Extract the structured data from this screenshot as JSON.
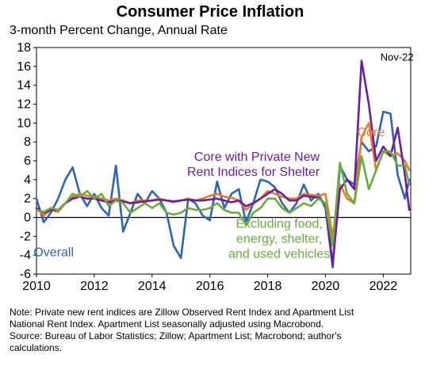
{
  "header": {
    "title": "Consumer Price Inflation",
    "subtitle": "3-month Percent Change, Annual Rate"
  },
  "note_lines": [
    "Note: Private new rent indices are Zillow Observed Rent Index and Apartment List",
    "National Rent Index. Apartment List seasonally adjusted using Macrobond.",
    "Source: Bureau of Labor Statistics; Zillow; Apartment List; Macrobond; author's",
    "calculations."
  ],
  "chart_data": {
    "type": "line",
    "title": "Consumer Price Inflation",
    "subtitle": "3-month Percent Change, Annual Rate",
    "xlim": [
      2010,
      2022.95
    ],
    "ylim": [
      -6,
      18
    ],
    "xticks": [
      2010,
      2012,
      2014,
      2016,
      2018,
      2020,
      2022
    ],
    "yticks": [
      -6,
      -4,
      -2,
      0,
      2,
      4,
      6,
      8,
      10,
      12,
      14,
      16,
      18
    ],
    "grid": false,
    "annotations": [
      {
        "text": "Nov-22",
        "x": 2021.9,
        "y": 16.6
      }
    ],
    "series": [
      {
        "name": "Overall",
        "color": "#2e64b8",
        "x": [
          2010.0,
          2010.25,
          2010.5,
          2010.75,
          2011.0,
          2011.25,
          2011.5,
          2011.75,
          2012.0,
          2012.25,
          2012.5,
          2012.75,
          2013.0,
          2013.25,
          2013.5,
          2013.75,
          2014.0,
          2014.25,
          2014.5,
          2014.75,
          2015.0,
          2015.25,
          2015.5,
          2015.75,
          2016.0,
          2016.25,
          2016.5,
          2016.75,
          2017.0,
          2017.25,
          2017.5,
          2017.75,
          2018.0,
          2018.25,
          2018.5,
          2018.75,
          2019.0,
          2019.25,
          2019.5,
          2019.75,
          2020.0,
          2020.25,
          2020.5,
          2020.75,
          2021.0,
          2021.25,
          2021.5,
          2021.75,
          2022.0,
          2022.25,
          2022.5,
          2022.75,
          2022.9
        ],
        "values": [
          2.0,
          -0.5,
          0.5,
          2.0,
          4.0,
          5.3,
          2.5,
          1.2,
          2.5,
          1.0,
          0.2,
          5.5,
          -1.5,
          0.5,
          2.5,
          1.5,
          2.8,
          2.0,
          0.5,
          -3.0,
          -4.3,
          2.0,
          1.5,
          0.2,
          -0.3,
          3.8,
          1.0,
          2.5,
          3.0,
          -0.5,
          1.5,
          4.0,
          3.8,
          3.2,
          1.5,
          0.5,
          1.5,
          3.5,
          1.8,
          2.5,
          1.0,
          -5.3,
          5.5,
          4.0,
          3.5,
          8.0,
          7.0,
          7.5,
          11.2,
          11.0,
          4.5,
          2.0,
          4.0
        ]
      },
      {
        "name": "Core",
        "color": "#ea7a27",
        "x": [
          2010.0,
          2010.25,
          2010.5,
          2010.75,
          2011.0,
          2011.25,
          2011.5,
          2011.75,
          2012.0,
          2012.25,
          2012.5,
          2012.75,
          2013.0,
          2013.25,
          2013.5,
          2013.75,
          2014.0,
          2014.25,
          2014.5,
          2014.75,
          2015.0,
          2015.25,
          2015.5,
          2015.75,
          2016.0,
          2016.25,
          2016.5,
          2016.75,
          2017.0,
          2017.25,
          2017.5,
          2017.75,
          2018.0,
          2018.25,
          2018.5,
          2018.75,
          2019.0,
          2019.25,
          2019.5,
          2019.75,
          2020.0,
          2020.25,
          2020.5,
          2020.75,
          2021.0,
          2021.25,
          2021.5,
          2021.75,
          2022.0,
          2022.25,
          2022.5,
          2022.75,
          2022.9
        ],
        "values": [
          1.0,
          0.2,
          0.8,
          0.6,
          1.5,
          2.2,
          2.5,
          2.3,
          2.2,
          2.0,
          1.8,
          2.0,
          1.8,
          1.5,
          1.8,
          1.8,
          1.8,
          2.0,
          1.8,
          1.6,
          1.8,
          2.0,
          1.8,
          2.0,
          2.3,
          2.5,
          2.2,
          2.1,
          1.8,
          0.8,
          1.5,
          2.0,
          2.8,
          2.5,
          2.2,
          2.0,
          2.0,
          2.5,
          2.4,
          2.3,
          2.5,
          -2.0,
          3.5,
          2.0,
          1.5,
          8.5,
          10.0,
          5.0,
          7.0,
          6.5,
          6.8,
          6.0,
          5.0
        ]
      },
      {
        "name": "Core with Private New Rent Indices for Shelter",
        "color": "#6a1fa2",
        "x": [
          2010.0,
          2010.25,
          2010.5,
          2010.75,
          2011.0,
          2011.25,
          2011.5,
          2011.75,
          2012.0,
          2012.25,
          2012.5,
          2012.75,
          2013.0,
          2013.25,
          2013.5,
          2013.75,
          2014.0,
          2014.25,
          2014.5,
          2014.75,
          2015.0,
          2015.25,
          2015.5,
          2015.75,
          2016.0,
          2016.25,
          2016.5,
          2016.75,
          2017.0,
          2017.25,
          2017.5,
          2017.75,
          2018.0,
          2018.25,
          2018.5,
          2018.75,
          2019.0,
          2019.25,
          2019.5,
          2019.75,
          2020.0,
          2020.25,
          2020.5,
          2020.75,
          2021.0,
          2021.25,
          2021.5,
          2021.75,
          2022.0,
          2022.25,
          2022.5,
          2022.75,
          2022.9
        ],
        "values": [
          1.0,
          0.5,
          0.8,
          0.8,
          1.5,
          2.0,
          2.2,
          2.0,
          2.0,
          1.8,
          1.6,
          1.8,
          1.7,
          1.5,
          1.6,
          1.7,
          1.8,
          1.9,
          1.8,
          1.7,
          1.8,
          1.9,
          1.8,
          1.8,
          1.9,
          2.0,
          1.8,
          1.6,
          1.8,
          1.2,
          1.5,
          2.0,
          2.5,
          3.0,
          2.5,
          1.8,
          1.8,
          2.3,
          2.2,
          2.1,
          1.5,
          -5.0,
          3.0,
          4.0,
          3.0,
          16.6,
          12.0,
          6.0,
          7.5,
          6.5,
          9.5,
          4.5,
          0.8
        ]
      },
      {
        "name": "Excluding food, energy, shelter, and used vehicles",
        "color": "#6aab3e",
        "x": [
          2010.0,
          2010.25,
          2010.5,
          2010.75,
          2011.0,
          2011.25,
          2011.5,
          2011.75,
          2012.0,
          2012.25,
          2012.5,
          2012.75,
          2013.0,
          2013.25,
          2013.5,
          2013.75,
          2014.0,
          2014.25,
          2014.5,
          2014.75,
          2015.0,
          2015.25,
          2015.5,
          2015.75,
          2016.0,
          2016.25,
          2016.5,
          2016.75,
          2017.0,
          2017.25,
          2017.5,
          2017.75,
          2018.0,
          2018.25,
          2018.5,
          2018.75,
          2019.0,
          2019.25,
          2019.5,
          2019.75,
          2020.0,
          2020.25,
          2020.5,
          2020.75,
          2021.0,
          2021.25,
          2021.5,
          2021.75,
          2022.0,
          2022.25,
          2022.5,
          2022.75,
          2022.9
        ],
        "values": [
          0.8,
          0.6,
          1.0,
          0.8,
          1.5,
          2.5,
          2.2,
          2.8,
          2.0,
          2.5,
          1.2,
          1.8,
          1.5,
          0.5,
          1.0,
          1.5,
          1.0,
          1.5,
          0.5,
          0.3,
          0.5,
          1.0,
          0.8,
          0.8,
          1.0,
          1.5,
          0.8,
          0.5,
          0.5,
          -0.8,
          0.5,
          1.0,
          2.0,
          2.0,
          1.0,
          0.5,
          1.0,
          1.5,
          1.2,
          2.0,
          1.5,
          -3.0,
          5.8,
          2.5,
          1.5,
          6.5,
          3.0,
          5.0,
          7.0,
          7.0,
          5.5,
          5.5,
          3.5
        ]
      }
    ],
    "labels": [
      {
        "series": 0,
        "lines": [
          "Overall"
        ]
      },
      {
        "series": 1,
        "lines": [
          "Core"
        ]
      },
      {
        "series": 2,
        "lines": [
          "Core with Private New",
          "Rent Indices for Shelter"
        ]
      },
      {
        "series": 3,
        "lines": [
          "Excluding food,",
          "energy, shelter,",
          "and used vehicles"
        ]
      }
    ]
  }
}
